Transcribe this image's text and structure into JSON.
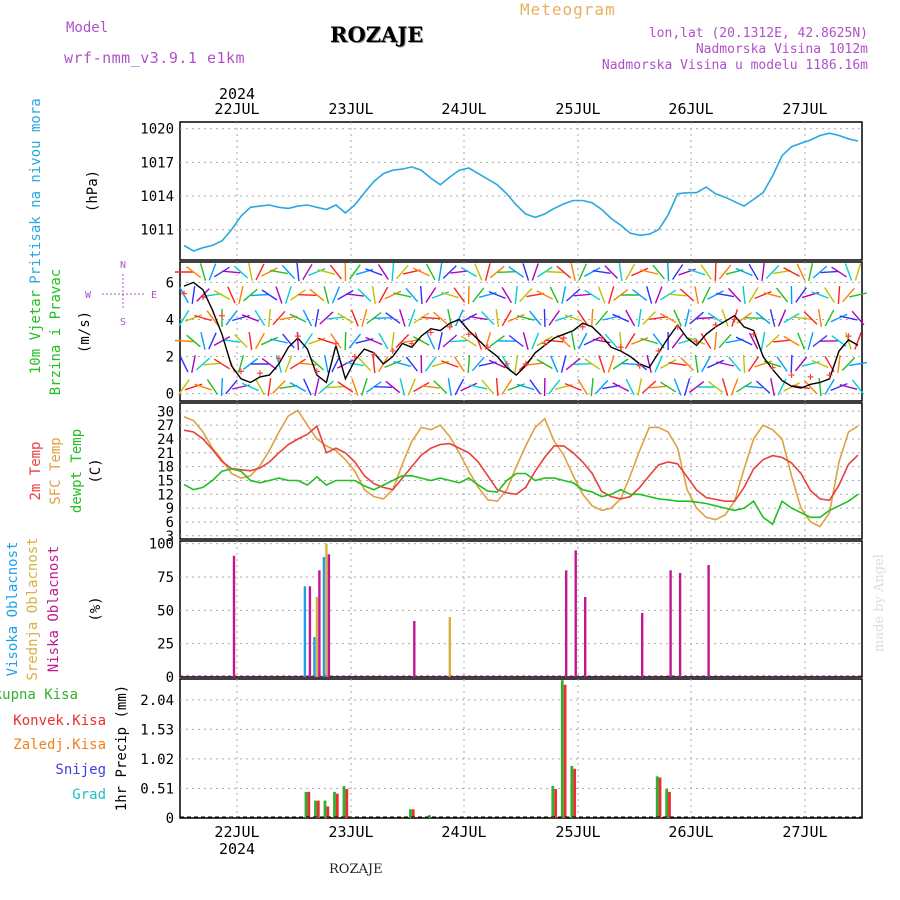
{
  "header": {
    "model_label": "Model",
    "model_name": "wrf-nmm_v3.9.1 e1km",
    "title": "ROZAJE",
    "meteogram": "Meteogram",
    "lonlat": "lon,lat (20.1312E, 42.8625N)",
    "altitude": "Nadmorska Visina 1012m",
    "model_altitude": "Nadmorska Visina u modelu 1186.16m",
    "year": "2024",
    "footer": "ROZAJE",
    "watermark": "made by Angel"
  },
  "colors": {
    "pressure": "#2aa8e0",
    "t2m": "#e8403c",
    "tsfc": "#e0a040",
    "dewpt": "#20c020",
    "cloud_high": "#20a0e8",
    "cloud_mid": "#d8b040",
    "cloud_low": "#c01890",
    "precip_total": "#30b030",
    "precip_conv": "#e83030",
    "precip_strat": "#f08020",
    "snow": "#4040e0",
    "hail": "#20c0c0",
    "wind_speed": "#000000",
    "wind_dir": "#ff4040"
  },
  "chart_data": [
    {
      "type": "line",
      "ylabel": [
        "Pritisak na nivou mora",
        "(hPa)"
      ],
      "x_ticks": [
        "22JUL",
        "23JUL",
        "24JUL",
        "25JUL",
        "26JUL",
        "27JUL"
      ],
      "yticks": [
        1011,
        1014,
        1017,
        1020
      ],
      "ylim": [
        1008.3,
        1020.6
      ],
      "series": [
        {
          "values": [
            1009.6,
            1009.1,
            1009.4,
            1009.6,
            1010.0,
            1011.0,
            1012.2,
            1013.0,
            1013.1,
            1013.2,
            1013.0,
            1012.9,
            1013.1,
            1013.2,
            1013.0,
            1012.8,
            1013.2,
            1012.5,
            1013.2,
            1014.3,
            1015.3,
            1016.0,
            1016.3,
            1016.4,
            1016.6,
            1016.3,
            1015.6,
            1015.0,
            1015.7,
            1016.3,
            1016.5,
            1016.0,
            1015.5,
            1015.0,
            1014.2,
            1013.2,
            1012.4,
            1012.1,
            1012.4,
            1012.9,
            1013.3,
            1013.6,
            1013.6,
            1013.4,
            1012.8,
            1012.0,
            1011.4,
            1010.7,
            1010.5,
            1010.6,
            1011.0,
            1012.3,
            1014.2,
            1014.3,
            1014.3,
            1014.8,
            1014.2,
            1013.9,
            1013.5,
            1013.1,
            1013.7,
            1014.3,
            1015.8,
            1017.6,
            1018.4,
            1018.7,
            1019.0,
            1019.4,
            1019.6,
            1019.4,
            1019.1,
            1018.9
          ]
        }
      ]
    },
    {
      "type": "line",
      "ylabel": [
        "10m Vjetar",
        "Brzina i Pravac",
        "(m/s)"
      ],
      "direction_legend": [
        "N",
        "W",
        "E",
        "S"
      ],
      "yticks": [
        0,
        2,
        4,
        6
      ],
      "ylim": [
        -0.4,
        7.1
      ],
      "series": [
        {
          "name": "speed",
          "values": [
            5.8,
            6.0,
            5.6,
            4.5,
            3.2,
            1.5,
            0.8,
            0.6,
            0.9,
            1.0,
            1.6,
            2.5,
            3.0,
            2.4,
            1.0,
            0.6,
            2.6,
            0.8,
            1.8,
            2.4,
            2.2,
            1.6,
            2.0,
            2.7,
            2.5,
            3.1,
            3.5,
            3.4,
            3.8,
            4.0,
            3.4,
            2.9,
            2.4,
            2.0,
            1.4,
            1.0,
            1.5,
            2.2,
            2.6,
            3.0,
            3.2,
            3.4,
            3.8,
            3.6,
            3.1,
            2.5,
            2.3,
            2.0,
            1.6,
            1.4,
            2.2,
            3.0,
            3.7,
            3.0,
            2.6,
            3.2,
            3.6,
            3.9,
            4.2,
            3.6,
            3.4,
            2.0,
            1.3,
            0.7,
            0.4,
            0.3,
            0.5,
            0.6,
            0.8,
            2.3,
            2.9,
            2.6
          ]
        },
        {
          "name": "direction",
          "values": [
            5.4,
            5.8,
            5.2,
            4.9,
            4.2,
            2.5,
            1.2,
            0.8,
            1.1,
            1.4,
            1.9,
            2.8,
            3.1,
            2.3,
            1.2,
            0.9,
            2.7,
            1.0,
            2.0,
            2.5,
            2.1,
            1.9,
            2.3,
            2.6,
            2.7,
            3.0,
            3.3,
            3.2,
            3.6,
            3.9,
            3.2,
            2.6,
            2.5,
            2.1,
            1.6,
            1.2,
            1.6,
            2.0,
            2.7,
            2.8,
            3.0,
            3.5,
            3.6,
            3.4,
            3.0,
            2.6,
            2.5,
            2.1,
            1.5,
            1.3,
            2.3,
            3.2,
            3.6,
            3.1,
            2.8,
            3.3,
            3.7,
            3.8,
            4.0,
            3.5,
            3.2,
            1.9,
            1.4,
            1.2,
            1.0,
            0.8,
            0.9,
            0.7,
            1.0,
            2.1,
            3.1,
            2.9
          ]
        }
      ]
    },
    {
      "type": "line",
      "ylabel": [
        "2m Temp",
        "SFC Temp",
        "dewpt Temp",
        "(C)"
      ],
      "yticks": [
        3,
        6,
        9,
        12,
        15,
        18,
        21,
        24,
        27,
        30
      ],
      "ylim": [
        2.3,
        31.8
      ],
      "series": [
        {
          "name": "2m Temp",
          "values": [
            25.9,
            25.5,
            24.0,
            21.7,
            19.1,
            17.6,
            17.3,
            17.1,
            17.7,
            19.0,
            21.0,
            22.8,
            24.0,
            25.0,
            26.8,
            21.0,
            22.0,
            21.0,
            19.0,
            16.0,
            14.3,
            13.5,
            13.0,
            15.5,
            18.0,
            20.5,
            22.0,
            22.8,
            23.0,
            22.0,
            21.0,
            19.0,
            16.0,
            13.0,
            12.3,
            12.0,
            13.5,
            17.0,
            20.0,
            22.5,
            22.5,
            21.0,
            19.0,
            16.5,
            12.6,
            11.5,
            11.0,
            11.5,
            13.5,
            16.0,
            18.4,
            19.0,
            18.6,
            15.8,
            12.9,
            11.3,
            10.9,
            10.5,
            10.5,
            13.5,
            17.5,
            19.5,
            20.4,
            20.0,
            18.8,
            16.5,
            12.8,
            11.0,
            10.7,
            14.0,
            18.5,
            20.5
          ]
        },
        {
          "name": "SFC Temp",
          "values": [
            28.8,
            28.0,
            25.5,
            22.0,
            19.5,
            16.5,
            15.5,
            16.0,
            18.2,
            21.5,
            25.5,
            29.0,
            30.2,
            27.0,
            24.0,
            22.5,
            21.5,
            19.5,
            17.0,
            13.0,
            11.5,
            11.0,
            13.0,
            18.5,
            23.5,
            26.5,
            26.0,
            27.0,
            24.5,
            21.0,
            17.0,
            13.5,
            10.8,
            10.5,
            13.0,
            18.0,
            22.5,
            26.5,
            28.4,
            23.5,
            20.5,
            16.0,
            12.0,
            9.5,
            8.5,
            9.0,
            11.0,
            16.0,
            21.5,
            26.5,
            26.5,
            25.5,
            22.0,
            13.0,
            9.0,
            7.0,
            6.5,
            7.5,
            10.5,
            17.5,
            24.0,
            27.0,
            26.0,
            24.0,
            16.0,
            9.0,
            6.0,
            5.0,
            8.0,
            19.0,
            25.5,
            26.8
          ]
        },
        {
          "name": "dewpt Temp",
          "values": [
            14.1,
            13.0,
            13.5,
            15.0,
            17.0,
            17.5,
            17.0,
            15.0,
            14.5,
            15.0,
            15.5,
            15.0,
            15.0,
            14.0,
            15.8,
            14.0,
            15.0,
            15.0,
            15.0,
            13.8,
            13.0,
            14.0,
            15.0,
            16.0,
            16.0,
            15.5,
            15.0,
            15.5,
            15.0,
            14.5,
            15.5,
            14.0,
            12.7,
            12.5,
            15.0,
            16.5,
            16.5,
            15.0,
            15.5,
            15.5,
            15.0,
            14.5,
            13.0,
            12.5,
            11.5,
            12.0,
            13.0,
            12.0,
            12.0,
            11.5,
            11.0,
            10.8,
            10.5,
            10.5,
            10.3,
            10.0,
            9.5,
            9.0,
            8.5,
            9.0,
            10.5,
            7.0,
            5.5,
            10.5,
            9.0,
            8.0,
            7.0,
            7.0,
            8.5,
            9.5,
            10.5,
            12.0
          ]
        }
      ]
    },
    {
      "type": "bar",
      "ylabel": [
        "Visoka Oblacnost",
        "Srednja Oblacnost",
        "Niska Oblacnost",
        "(%)"
      ],
      "yticks": [
        0,
        25,
        50,
        75,
        100
      ],
      "ylim": [
        0,
        102
      ],
      "series": [
        {
          "name": "Visoka Oblacnost",
          "values": [
            0,
            0,
            0,
            0,
            0,
            0,
            0,
            0,
            0,
            0,
            0,
            0,
            0,
            68,
            30,
            90,
            0,
            0,
            0,
            0,
            0,
            0,
            0,
            0,
            0,
            0,
            0,
            0,
            0,
            0,
            0,
            0,
            0,
            0,
            0,
            0,
            0,
            0,
            0,
            0,
            0,
            0,
            0,
            0,
            0,
            0,
            0,
            0,
            0,
            0,
            0,
            0,
            0,
            0,
            0,
            0,
            0,
            0,
            0,
            0,
            0,
            0,
            0,
            0,
            0,
            0,
            0,
            0,
            0,
            0,
            0,
            0
          ]
        },
        {
          "name": "Srednja Oblacnost",
          "values": [
            0,
            0,
            0,
            0,
            0,
            0,
            0,
            0,
            0,
            0,
            0,
            0,
            0,
            0,
            60,
            100,
            0,
            0,
            0,
            0,
            0,
            0,
            0,
            0,
            0,
            0,
            0,
            0,
            45,
            0,
            0,
            0,
            0,
            0,
            0,
            0,
            0,
            0,
            0,
            0,
            0,
            0,
            0,
            0,
            0,
            0,
            0,
            0,
            0,
            0,
            0,
            0,
            0,
            0,
            0,
            0,
            0,
            0,
            0,
            0,
            0,
            0,
            0,
            0,
            0,
            0,
            0,
            0,
            0,
            0,
            0,
            0
          ]
        },
        {
          "name": "Niska Oblacnost",
          "values": [
            0,
            0,
            0,
            0,
            0,
            91,
            0,
            0,
            0,
            0,
            0,
            0,
            0,
            68,
            80,
            92,
            0,
            0,
            0,
            0,
            0,
            0,
            0,
            0,
            42,
            0,
            0,
            0,
            0,
            0,
            0,
            0,
            0,
            0,
            0,
            0,
            0,
            0,
            0,
            0,
            80,
            95,
            60,
            0,
            0,
            0,
            0,
            0,
            48,
            0,
            0,
            80,
            78,
            0,
            0,
            84,
            0,
            0,
            0,
            0,
            0,
            0,
            0,
            0,
            0,
            0,
            0,
            0,
            0,
            0,
            0,
            0
          ]
        }
      ]
    },
    {
      "type": "bar",
      "ylabel": [
        "1hr Precip (mm)"
      ],
      "legend": [
        "Ukupna Kisa",
        "Konvek.Kisa",
        "Zaledj.Kisa",
        "Snijeg",
        "Grad"
      ],
      "yticks": [
        0,
        0.51,
        1.02,
        1.53,
        2.04
      ],
      "ylim": [
        0,
        2.4
      ],
      "series": [
        {
          "name": "Ukupna Kisa",
          "values": [
            0,
            0,
            0,
            0,
            0,
            0.02,
            0,
            0,
            0,
            0,
            0,
            0,
            0,
            0.45,
            0.3,
            0.3,
            0.45,
            0.55,
            0,
            0,
            0,
            0,
            0,
            0,
            0.15,
            0,
            0.05,
            0,
            0,
            0,
            0,
            0,
            0,
            0,
            0,
            0,
            0,
            0,
            0,
            0.55,
            2.38,
            0.9,
            0,
            0,
            0,
            0,
            0,
            0,
            0,
            0,
            0.72,
            0.5,
            0,
            0,
            0,
            0,
            0,
            0,
            0,
            0,
            0,
            0,
            0,
            0,
            0,
            0,
            0,
            0,
            0,
            0,
            0,
            0
          ]
        },
        {
          "name": "Konvek.Kisa",
          "values": [
            0,
            0,
            0,
            0,
            0,
            0,
            0,
            0,
            0,
            0,
            0,
            0,
            0,
            0.45,
            0.3,
            0.2,
            0.42,
            0.5,
            0,
            0,
            0,
            0,
            0,
            0,
            0.15,
            0,
            0,
            0,
            0,
            0,
            0,
            0,
            0,
            0,
            0,
            0,
            0,
            0,
            0,
            0.5,
            2.3,
            0.85,
            0,
            0,
            0,
            0,
            0,
            0,
            0,
            0,
            0.7,
            0.45,
            0,
            0,
            0,
            0,
            0,
            0,
            0,
            0,
            0,
            0,
            0,
            0,
            0,
            0,
            0,
            0,
            0,
            0,
            0,
            0
          ]
        }
      ]
    }
  ]
}
